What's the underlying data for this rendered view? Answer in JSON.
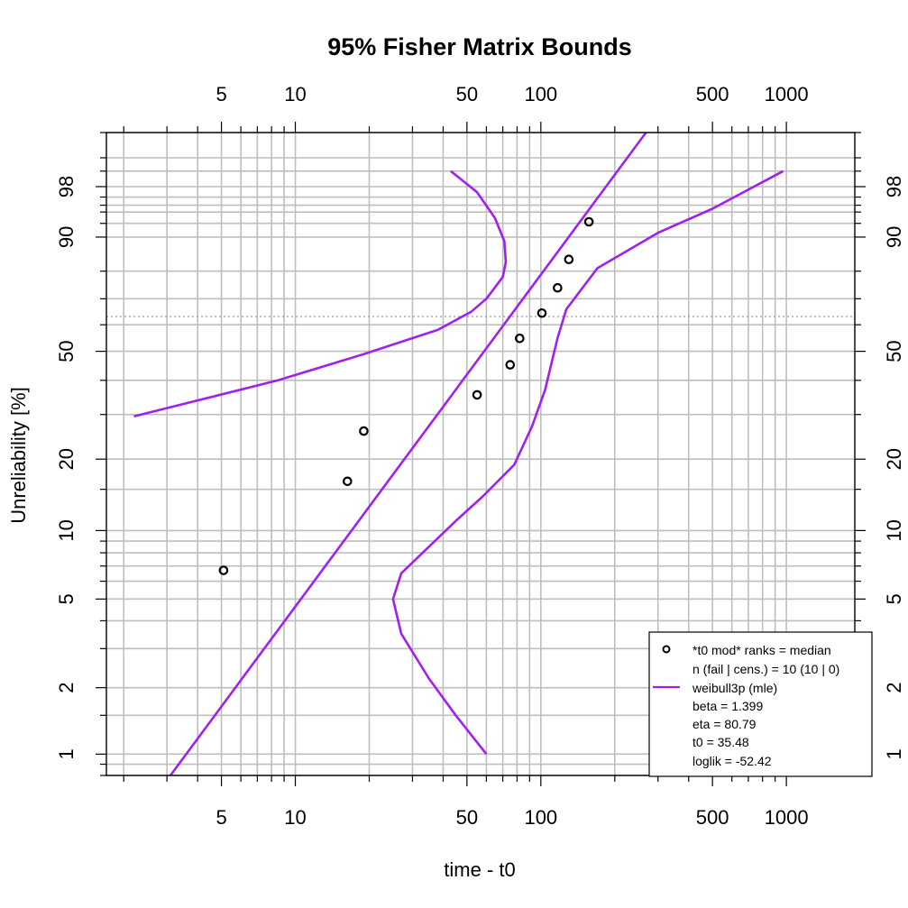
{
  "chart_data": {
    "type": "scatter",
    "title": "95% Fisher Matrix Bounds",
    "xlabel": "time - t0",
    "ylabel": "Unreliability [%]",
    "x_scale": "log",
    "y_scale": "weibull",
    "xlim": [
      1.7,
      1900
    ],
    "ylim": [
      0.8,
      99.9
    ],
    "x_ticks": [
      5,
      10,
      50,
      100,
      500,
      1000
    ],
    "y_ticks": [
      1,
      2,
      5,
      10,
      20,
      50,
      90,
      98
    ],
    "grid": true,
    "reference_line_y": 63.2,
    "points": [
      {
        "x": 5.1,
        "y": 6.7
      },
      {
        "x": 16.3,
        "y": 16.2
      },
      {
        "x": 19.0,
        "y": 25.9
      },
      {
        "x": 55.0,
        "y": 35.5
      },
      {
        "x": 75.0,
        "y": 45.2
      },
      {
        "x": 82.0,
        "y": 54.8
      },
      {
        "x": 101.0,
        "y": 64.5
      },
      {
        "x": 117.0,
        "y": 74.1
      },
      {
        "x": 130.0,
        "y": 83.8
      },
      {
        "x": 157.0,
        "y": 93.3
      }
    ],
    "fit_line": [
      {
        "x": 3.1,
        "y": 0.8
      },
      {
        "x": 268.0,
        "y": 99.9
      }
    ],
    "upper_bound": [
      {
        "x": 2.2,
        "y": 29.5
      },
      {
        "x": 8.5,
        "y": 40.0
      },
      {
        "x": 19.0,
        "y": 49.0
      },
      {
        "x": 38.0,
        "y": 58.0
      },
      {
        "x": 52.0,
        "y": 65.0
      },
      {
        "x": 60.0,
        "y": 70.0
      },
      {
        "x": 70.0,
        "y": 78.0
      },
      {
        "x": 72.0,
        "y": 83.0
      },
      {
        "x": 71.0,
        "y": 89.0
      },
      {
        "x": 65.0,
        "y": 94.0
      },
      {
        "x": 55.0,
        "y": 97.5
      },
      {
        "x": 43.0,
        "y": 99.0
      }
    ],
    "lower_bound": [
      {
        "x": 60.0,
        "y": 1.0
      },
      {
        "x": 45.0,
        "y": 1.5
      },
      {
        "x": 35.0,
        "y": 2.2
      },
      {
        "x": 27.0,
        "y": 3.5
      },
      {
        "x": 25.0,
        "y": 5.0
      },
      {
        "x": 27.0,
        "y": 6.5
      },
      {
        "x": 33.0,
        "y": 8.0
      },
      {
        "x": 45.0,
        "y": 11.0
      },
      {
        "x": 58.0,
        "y": 14.0
      },
      {
        "x": 78.0,
        "y": 19.0
      },
      {
        "x": 92.0,
        "y": 27.0
      },
      {
        "x": 104.0,
        "y": 37.0
      },
      {
        "x": 117.0,
        "y": 55.0
      },
      {
        "x": 127.0,
        "y": 66.0
      },
      {
        "x": 170.0,
        "y": 81.0
      },
      {
        "x": 300.0,
        "y": 91.0
      },
      {
        "x": 500.0,
        "y": 95.5
      },
      {
        "x": 970.0,
        "y": 99.0
      }
    ],
    "series_colors": {
      "points": "#000000",
      "lines": "#a020f0"
    },
    "legend": {
      "placement": "bottom-right",
      "lines": [
        "*t0 mod* ranks = median",
        "n (fail | cens.) = 10 (10 | 0)",
        "weibull3p (mle)",
        "beta = 1.399",
        "eta = 80.79",
        "t0 = 35.48",
        "loglik = -52.42"
      ]
    }
  }
}
